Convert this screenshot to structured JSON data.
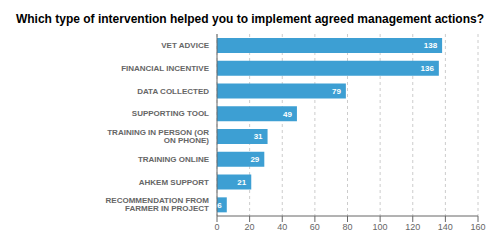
{
  "chart_data": {
    "type": "bar",
    "title": "Which type of intervention helped you to implement agreed management actions?",
    "orientation": "horizontal",
    "categories": [
      "RECOMMENDATION FROM FARMER IN PROJECT",
      "AHKEM SUPPORT",
      "TRAINING ONLINE",
      "TRAINING IN PERSON (OR ON PHONE)",
      "SUPPORTING TOOL",
      "DATA COLLECTED",
      "FINANCIAL INCENTIVE",
      "VET ADVICE"
    ],
    "values": [
      6,
      21,
      29,
      31,
      49,
      79,
      136,
      138
    ],
    "color": "#3d9fd3",
    "xlim": [
      0,
      160
    ],
    "xticks": [
      0,
      20,
      40,
      60,
      80,
      100,
      120,
      140,
      160
    ],
    "grid": true,
    "data_labels": true
  }
}
